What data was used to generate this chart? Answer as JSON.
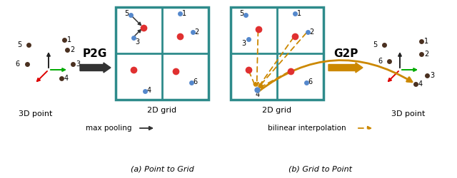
{
  "bg_color": "#ffffff",
  "teal": "#2e8b8b",
  "dark_gray": "#333333",
  "red_dot": "#e03030",
  "blue_dot": "#5588cc",
  "brown_dot": "#4a3020",
  "gold": "#cc8800",
  "axis_green": "#00aa00",
  "axis_red": "#dd0000",
  "p2g_label": "P2G",
  "g2p_label": "G2P",
  "label_3d_left": "3D point",
  "label_2d_left": "2D grid",
  "label_2d_right": "2D grid",
  "label_3d_right": "3D point",
  "caption_a": "(a) Point to Grid",
  "caption_b": "(b) Grid to Point",
  "max_pool_text": "max pooling",
  "bilinear_text": "bilinear interpolation"
}
